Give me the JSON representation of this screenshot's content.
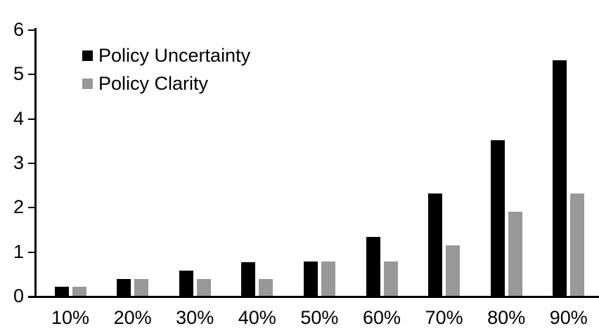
{
  "chart_data": {
    "type": "bar",
    "title": "",
    "xlabel": "",
    "ylabel": "",
    "categories": [
      "10%",
      "20%",
      "30%",
      "40%",
      "50%",
      "60%",
      "70%",
      "80%",
      "90%"
    ],
    "series": [
      {
        "name": "Policy Uncertainty",
        "color": "#000000",
        "values": [
          0.2,
          0.38,
          0.57,
          0.76,
          0.78,
          1.33,
          2.3,
          3.5,
          5.3
        ]
      },
      {
        "name": "Policy Clarity",
        "color": "#989898",
        "values": [
          0.2,
          0.38,
          0.38,
          0.38,
          0.77,
          0.77,
          1.13,
          1.9,
          2.3
        ]
      }
    ],
    "ylim": [
      0,
      6
    ],
    "yticks": [
      0,
      1,
      2,
      3,
      4,
      5,
      6
    ],
    "grid": false,
    "legend_position": "top-left-inside",
    "axis_color": "#000000",
    "background_color": "#ffffff"
  }
}
